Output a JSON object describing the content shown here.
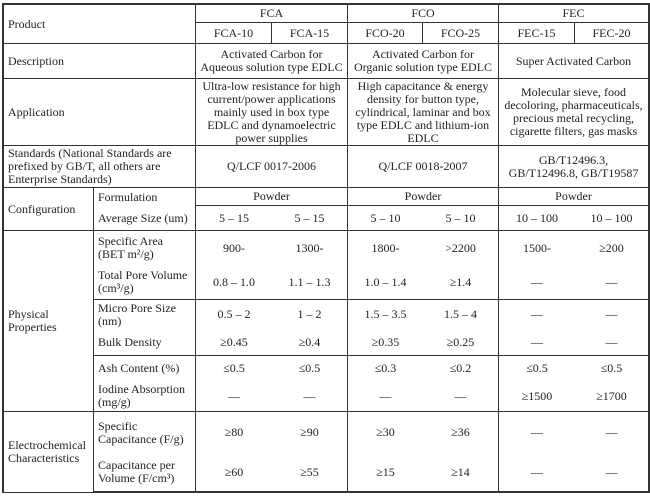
{
  "header": {
    "product_label": "Product",
    "groups": [
      "FCA",
      "FCO",
      "FEC"
    ],
    "models": [
      "FCA-10",
      "FCA-15",
      "FCO-20",
      "FCO-25",
      "FEC-15",
      "FEC-20"
    ]
  },
  "description": {
    "label": "Description",
    "values": [
      "Activated Carbon for Aqueous solution type EDLC",
      "Activated Carbon for Organic solution type EDLC",
      "Super Activated Carbon"
    ]
  },
  "application": {
    "label": "Application",
    "values": [
      "Ultra-low resistance for high current/power applications mainly used in box type EDLC and dynamoelectric power supplies",
      "High capacitance & energy density for button type, cylindrical, laminar and box type EDLC and lithium-ion EDLC",
      "Molecular sieve, food decoloring, pharmaceuticals, precious metal recycling, cigarette filters, gas masks"
    ]
  },
  "standards": {
    "label": "Standards (National Standards are prefixed by GB/T, all others are Enterprise Standards)",
    "values": [
      "Q/LCF 0017-2006",
      "Q/LCF 0018-2007",
      "GB/T12496.3, GB/T12496.8, GB/T19587"
    ]
  },
  "configuration": {
    "label": "Configuration",
    "formulation": {
      "label": "Formulation",
      "values": [
        "Powder",
        "Powder",
        "Powder"
      ]
    },
    "average_size": {
      "label": "Average Size (um)",
      "values": [
        "5 – 15",
        "5 – 15",
        "5 – 10",
        "5 – 10",
        "10 – 100",
        "10 – 100"
      ]
    }
  },
  "physical": {
    "label": "Physical Properties",
    "rows": [
      {
        "label": "Specific Area (BET m²/g)",
        "values": [
          "900-",
          "1300-",
          "1800-",
          ">2200",
          "1500-",
          "≥200"
        ]
      },
      {
        "label": "Total Pore Volume (cm³/g)",
        "values": [
          "0.8 – 1.0",
          "1.1 – 1.3",
          "1.0 – 1.4",
          "≥1.4",
          "—",
          "—"
        ]
      },
      {
        "label": "Micro Pore Size (nm)",
        "values": [
          "0.5 – 2",
          "1 – 2",
          "1.5 – 3.5",
          "1.5 – 4",
          "—",
          "—"
        ]
      },
      {
        "label": "Bulk Density",
        "values": [
          "≥0.45",
          "≥0.4",
          "≥0.35",
          "≥0.25",
          "—",
          "—"
        ]
      },
      {
        "label": "Ash Content (%)",
        "values": [
          "≤0.5",
          "≤0.5",
          "≤0.3",
          "≤0.2",
          "≤0.5",
          "≤0.5"
        ]
      },
      {
        "label": "Iodine Absorption (mg/g)",
        "values": [
          "—",
          "—",
          "—",
          "—",
          "≥1500",
          "≥1700"
        ]
      }
    ]
  },
  "electrochemical": {
    "label": "Electrochemical Characteristics",
    "rows": [
      {
        "label": "Specific Capacitance (F/g)",
        "values": [
          "≥80",
          "≥90",
          "≥30",
          "≥36",
          "—",
          "—"
        ]
      },
      {
        "label": "Capacitance per Volume (F/cm³)",
        "values": [
          "≥60",
          "≥55",
          "≥15",
          "≥14",
          "—",
          "—"
        ]
      }
    ]
  }
}
